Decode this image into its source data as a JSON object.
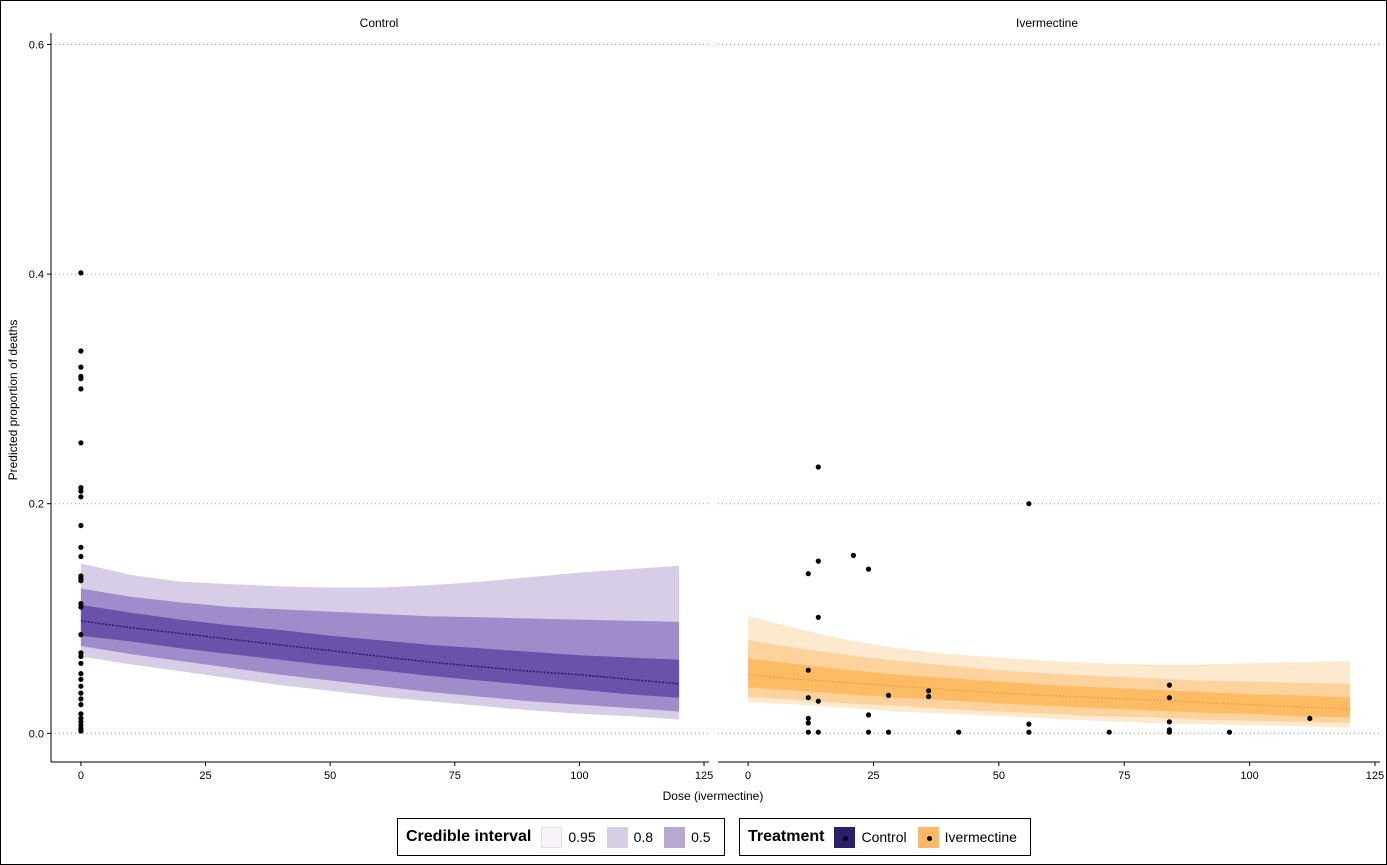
{
  "chart_data": {
    "type": "line",
    "ylabel": "Predicted proportion of deaths",
    "xlabel": "Dose (ivermectine)",
    "ylim": [
      -0.025,
      0.61
    ],
    "yticks": [
      0.0,
      0.2,
      0.4,
      0.6
    ],
    "ytick_labels": [
      "0.0",
      "0.2",
      "0.4",
      "0.6"
    ],
    "xlim": [
      -6,
      126
    ],
    "xticks": [
      0,
      25,
      50,
      75,
      100,
      125
    ],
    "xtick_labels": [
      "0",
      "25",
      "50",
      "75",
      "100",
      "125"
    ],
    "grid": "horizontal dotted",
    "panels": [
      {
        "title": "Control",
        "color": "#5e3c99",
        "band_colors": [
          "#d7cde6",
          "#a08bcb",
          "#6a51a9"
        ],
        "x": [
          0,
          10,
          20,
          30,
          40,
          50,
          60,
          70,
          80,
          90,
          100,
          110,
          120
        ],
        "median": [
          0.098,
          0.092,
          0.087,
          0.082,
          0.077,
          0.072,
          0.067,
          0.062,
          0.058,
          0.054,
          0.051,
          0.047,
          0.043
        ],
        "ci95_low": [
          0.067,
          0.06,
          0.054,
          0.048,
          0.042,
          0.037,
          0.032,
          0.028,
          0.024,
          0.02,
          0.017,
          0.015,
          0.012
        ],
        "ci95_high": [
          0.148,
          0.138,
          0.132,
          0.13,
          0.128,
          0.127,
          0.127,
          0.129,
          0.132,
          0.136,
          0.14,
          0.143,
          0.146
        ],
        "ci80_low": [
          0.076,
          0.069,
          0.063,
          0.057,
          0.051,
          0.046,
          0.041,
          0.036,
          0.032,
          0.028,
          0.025,
          0.022,
          0.019
        ],
        "ci80_high": [
          0.126,
          0.119,
          0.114,
          0.11,
          0.108,
          0.106,
          0.104,
          0.102,
          0.101,
          0.1,
          0.099,
          0.098,
          0.097
        ],
        "ci50_low": [
          0.085,
          0.08,
          0.074,
          0.069,
          0.064,
          0.059,
          0.055,
          0.05,
          0.046,
          0.042,
          0.038,
          0.034,
          0.031
        ],
        "ci50_high": [
          0.112,
          0.105,
          0.099,
          0.094,
          0.09,
          0.085,
          0.081,
          0.077,
          0.074,
          0.071,
          0.068,
          0.066,
          0.064
        ],
        "points": [
          [
            0,
            0.401
          ],
          [
            0,
            0.333
          ],
          [
            0,
            0.319
          ],
          [
            0,
            0.311
          ],
          [
            0,
            0.309
          ],
          [
            0,
            0.3
          ],
          [
            0,
            0.253
          ],
          [
            0,
            0.214
          ],
          [
            0,
            0.211
          ],
          [
            0,
            0.206
          ],
          [
            0,
            0.181
          ],
          [
            0,
            0.162
          ],
          [
            0,
            0.154
          ],
          [
            0,
            0.137
          ],
          [
            0,
            0.135
          ],
          [
            0,
            0.133
          ],
          [
            0,
            0.113
          ],
          [
            0,
            0.11
          ],
          [
            0,
            0.086
          ],
          [
            0,
            0.07
          ],
          [
            0,
            0.067
          ],
          [
            0,
            0.061
          ],
          [
            0,
            0.052
          ],
          [
            0,
            0.047
          ],
          [
            0,
            0.041
          ],
          [
            0,
            0.035
          ],
          [
            0,
            0.03
          ],
          [
            0,
            0.025
          ],
          [
            0,
            0.017
          ],
          [
            0,
            0.013
          ],
          [
            0,
            0.01
          ],
          [
            0,
            0.007
          ],
          [
            0,
            0.004
          ],
          [
            0,
            0.002
          ]
        ]
      },
      {
        "title": "Ivermectine",
        "color": "#fdb863",
        "band_colors": [
          "#fde9cd",
          "#fdd29c",
          "#fdbb63"
        ],
        "x": [
          0,
          10,
          20,
          30,
          40,
          50,
          60,
          70,
          80,
          90,
          100,
          110,
          120
        ],
        "median": [
          0.051,
          0.047,
          0.044,
          0.041,
          0.038,
          0.035,
          0.033,
          0.031,
          0.029,
          0.027,
          0.025,
          0.023,
          0.021
        ],
        "ci95_low": [
          0.027,
          0.025,
          0.022,
          0.019,
          0.017,
          0.015,
          0.013,
          0.011,
          0.009,
          0.008,
          0.007,
          0.006,
          0.005
        ],
        "ci95_high": [
          0.102,
          0.091,
          0.081,
          0.074,
          0.069,
          0.066,
          0.063,
          0.061,
          0.06,
          0.06,
          0.061,
          0.062,
          0.063
        ],
        "ci80_low": [
          0.032,
          0.029,
          0.026,
          0.024,
          0.021,
          0.019,
          0.017,
          0.015,
          0.014,
          0.012,
          0.011,
          0.01,
          0.009
        ],
        "ci80_high": [
          0.081,
          0.074,
          0.068,
          0.063,
          0.059,
          0.055,
          0.052,
          0.05,
          0.048,
          0.046,
          0.045,
          0.044,
          0.043
        ],
        "ci50_low": [
          0.04,
          0.037,
          0.034,
          0.031,
          0.029,
          0.026,
          0.024,
          0.022,
          0.02,
          0.018,
          0.017,
          0.015,
          0.014
        ],
        "ci50_high": [
          0.065,
          0.06,
          0.055,
          0.051,
          0.048,
          0.045,
          0.042,
          0.04,
          0.038,
          0.036,
          0.034,
          0.033,
          0.031
        ],
        "points": [
          [
            12,
            0.139
          ],
          [
            12,
            0.055
          ],
          [
            12,
            0.031
          ],
          [
            12,
            0.013
          ],
          [
            12,
            0.009
          ],
          [
            12,
            0.001
          ],
          [
            14,
            0.232
          ],
          [
            14,
            0.15
          ],
          [
            14,
            0.101
          ],
          [
            14,
            0.028
          ],
          [
            14,
            0.001
          ],
          [
            21,
            0.155
          ],
          [
            24,
            0.143
          ],
          [
            24,
            0.016
          ],
          [
            24,
            0.001
          ],
          [
            28,
            0.033
          ],
          [
            28,
            0.001
          ],
          [
            36,
            0.037
          ],
          [
            36,
            0.032
          ],
          [
            42,
            0.001
          ],
          [
            56,
            0.2
          ],
          [
            56,
            0.008
          ],
          [
            56,
            0.001
          ],
          [
            72,
            0.001
          ],
          [
            84,
            0.042
          ],
          [
            84,
            0.031
          ],
          [
            84,
            0.01
          ],
          [
            84,
            0.003
          ],
          [
            84,
            0.001
          ],
          [
            96,
            0.001
          ],
          [
            112,
            0.013
          ]
        ]
      }
    ],
    "legends": [
      {
        "title": "Credible interval",
        "items": [
          {
            "label": "0.95",
            "color": "#f7f3f9",
            "border": "#e9dbe9"
          },
          {
            "label": "0.8",
            "color": "#d7cde6",
            "border": "#d7cde6"
          },
          {
            "label": "0.5",
            "color": "#b8a8d0",
            "border": "#b8a8d0"
          }
        ]
      },
      {
        "title": "Treatment",
        "items": [
          {
            "label": "Control",
            "color": "#2d1d6d"
          },
          {
            "label": "Ivermectine",
            "color": "#fdb863"
          }
        ]
      }
    ]
  }
}
